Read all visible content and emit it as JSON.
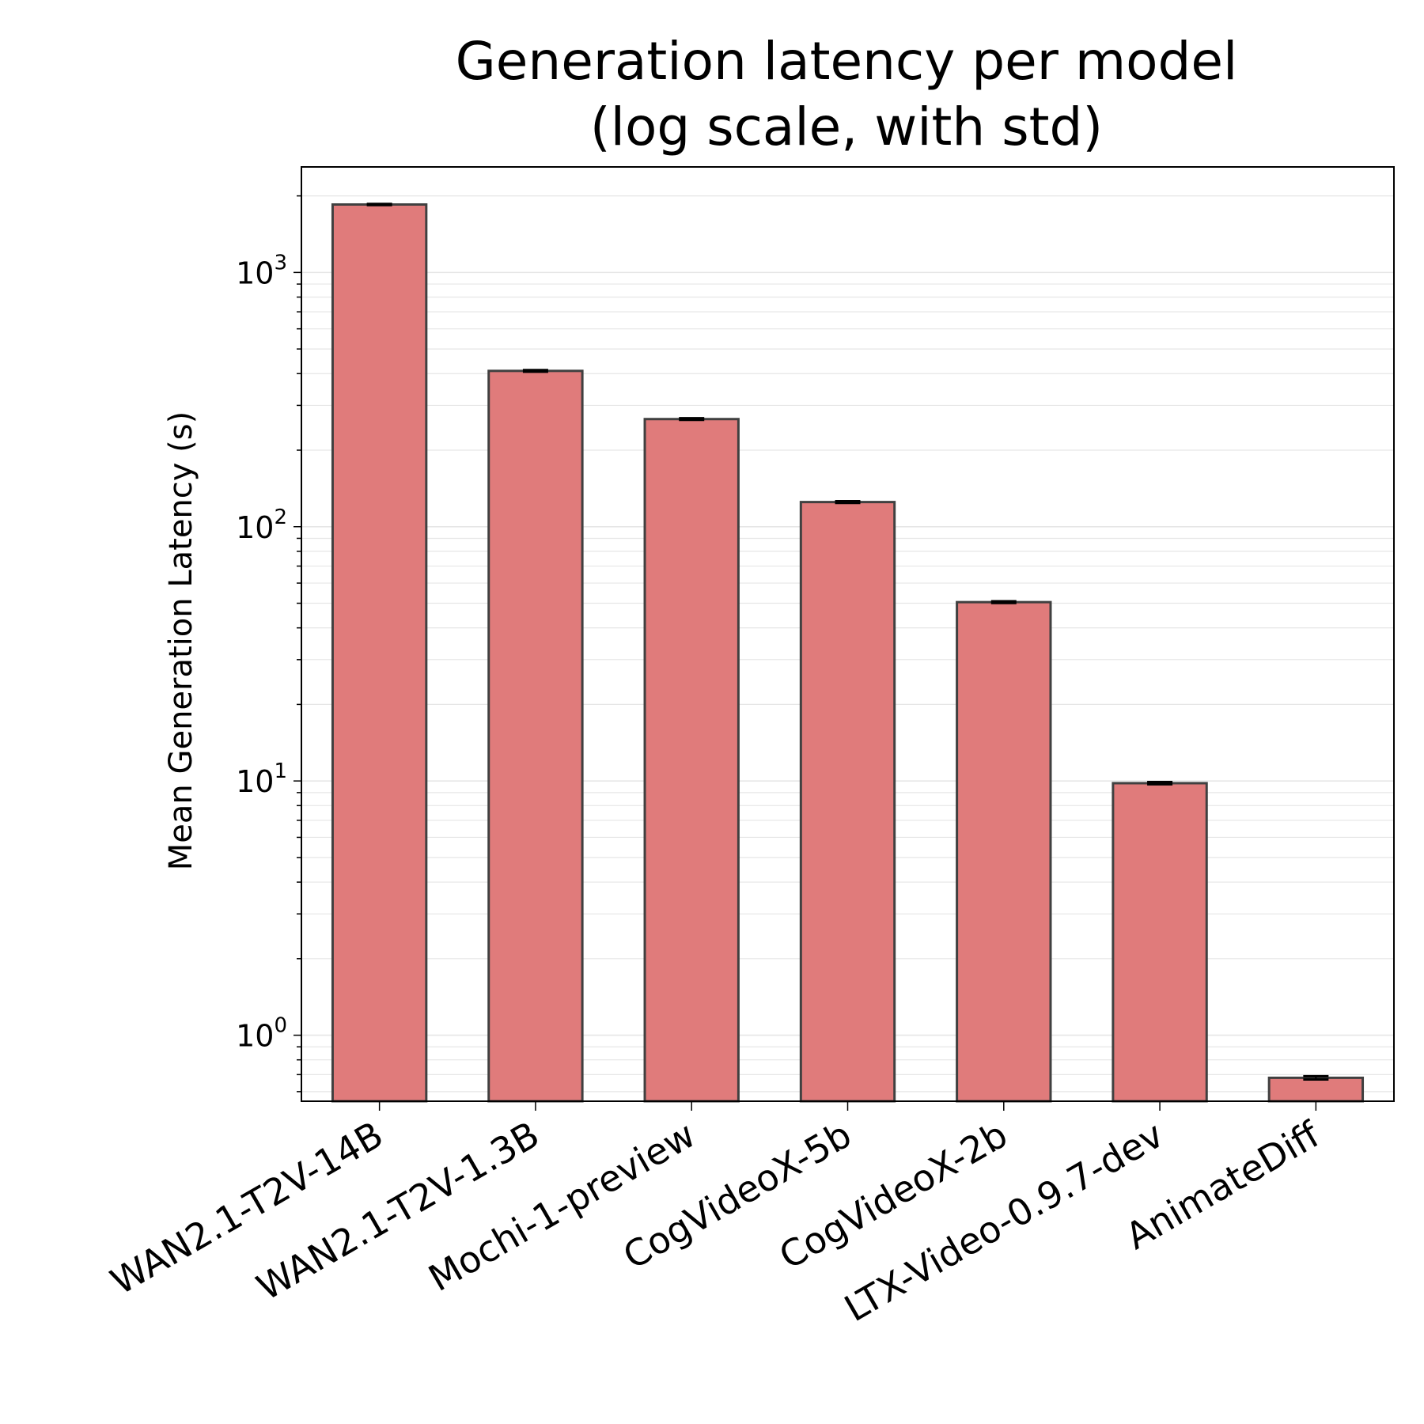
{
  "chart_data": {
    "type": "bar",
    "title": "Generation latency per model\n(log scale, with std)",
    "xlabel": "",
    "ylabel": "Mean Generation Latency (s)",
    "yscale": "log",
    "ylim": [
      0.55,
      2600
    ],
    "grid": true,
    "categories": [
      "WAN2.1-T2V-14B",
      "WAN2.1-T2V-1.3B",
      "Mochi-1-preview",
      "CogVideoX-5b",
      "CogVideoX-2b",
      "LTX-Video-0.9.7-dev",
      "AnimateDiff"
    ],
    "values": [
      1850,
      410,
      265,
      125,
      50.5,
      9.8,
      0.68
    ],
    "std": [
      10,
      3,
      2,
      1,
      0.4,
      0.1,
      0.01
    ],
    "yticks": [
      {
        "base": "10",
        "exp": "0",
        "value": 1
      },
      {
        "base": "10",
        "exp": "1",
        "value": 10
      },
      {
        "base": "10",
        "exp": "2",
        "value": 100
      },
      {
        "base": "10",
        "exp": "3",
        "value": 1000
      }
    ],
    "colors": {
      "bar": "#e07b7b",
      "edge": "#404040",
      "grid": "#e6e6e6"
    }
  }
}
